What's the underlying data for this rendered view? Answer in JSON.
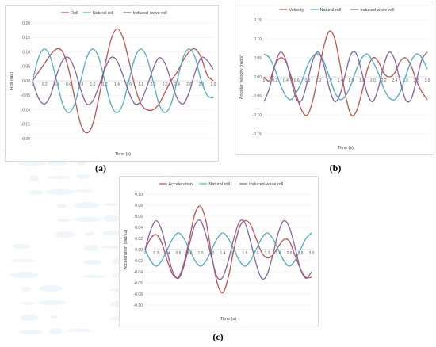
{
  "chart_data": [
    {
      "type": "line",
      "panel_label": "a",
      "xlabel": "Time (s)",
      "ylabel": "Roll (rad)",
      "xlim": [
        0,
        3.0
      ],
      "ylim": [
        -0.2,
        0.2
      ],
      "xticks": [
        "0",
        "0.2",
        "0.4",
        "0.6",
        "0.8",
        "1.0",
        "1.2",
        "1.4",
        "1.6",
        "1.8",
        "2.0",
        "2.2",
        "2.4",
        "2.6",
        "2.8",
        "3.0"
      ],
      "yticks": [
        "0.20",
        "0.15",
        "0.10",
        "0.05",
        "0.00",
        "-0.05",
        "-0.10",
        "-0.15",
        "-0.20"
      ],
      "legend_position": "top",
      "series": [
        {
          "name": "Roll",
          "color": "#c0504d",
          "x": [
            0.0,
            0.1,
            0.2,
            0.3,
            0.4,
            0.5,
            0.6,
            0.7,
            0.8,
            0.9,
            1.0,
            1.1,
            1.2,
            1.3,
            1.4,
            1.5,
            1.6,
            1.7,
            1.8,
            1.9,
            2.0,
            2.1,
            2.2,
            2.3,
            2.4,
            2.5,
            2.6,
            2.7,
            2.8,
            2.9,
            3.0
          ],
          "y": [
            0.0,
            0.03,
            0.06,
            0.09,
            0.11,
            0.1,
            0.04,
            -0.06,
            -0.15,
            -0.18,
            -0.15,
            -0.06,
            0.05,
            0.14,
            0.18,
            0.15,
            0.07,
            -0.02,
            -0.08,
            -0.1,
            -0.1,
            -0.08,
            -0.04,
            0.0,
            0.03,
            0.07,
            0.1,
            0.11,
            0.08,
            0.02,
            0.0
          ]
        },
        {
          "name": "Natural roll",
          "color": "#4bacc6",
          "x": [
            0.0,
            0.1,
            0.2,
            0.3,
            0.4,
            0.5,
            0.6,
            0.7,
            0.8,
            0.9,
            1.0,
            1.1,
            1.2,
            1.3,
            1.4,
            1.5,
            1.6,
            1.7,
            1.8,
            1.9,
            2.0,
            2.1,
            2.2,
            2.3,
            2.4,
            2.5,
            2.6,
            2.7,
            2.8,
            2.9,
            3.0
          ],
          "y": [
            0.0,
            0.08,
            0.11,
            0.08,
            0.0,
            -0.08,
            -0.11,
            -0.08,
            0.0,
            0.08,
            0.11,
            0.08,
            0.0,
            -0.08,
            -0.11,
            -0.08,
            0.0,
            0.08,
            0.11,
            0.08,
            0.0,
            -0.08,
            -0.11,
            -0.08,
            0.0,
            0.08,
            0.11,
            0.08,
            0.0,
            -0.05,
            -0.06
          ]
        },
        {
          "name": "Induced-wave roll",
          "color": "#8064a2",
          "x": [
            0.0,
            0.1,
            0.2,
            0.3,
            0.4,
            0.5,
            0.6,
            0.7,
            0.8,
            0.9,
            1.0,
            1.1,
            1.2,
            1.3,
            1.4,
            1.5,
            1.6,
            1.7,
            1.8,
            1.9,
            2.0,
            2.1,
            2.2,
            2.3,
            2.4,
            2.5,
            2.6,
            2.7,
            2.8,
            2.9,
            3.0
          ],
          "y": [
            0.0,
            -0.06,
            -0.08,
            -0.05,
            0.02,
            0.07,
            0.08,
            0.04,
            -0.03,
            -0.08,
            -0.07,
            -0.02,
            0.04,
            0.08,
            0.07,
            0.02,
            -0.04,
            -0.08,
            -0.07,
            -0.02,
            0.04,
            0.08,
            0.06,
            0.0,
            -0.06,
            -0.08,
            -0.04,
            0.03,
            0.08,
            0.07,
            0.04
          ]
        }
      ]
    },
    {
      "type": "line",
      "panel_label": "b",
      "xlabel": "Time (s)",
      "ylabel": "Angular velocity (rad/s)",
      "xlim": [
        0,
        3.0
      ],
      "ylim": [
        -0.15,
        0.15
      ],
      "xticks": [
        "0",
        "0.2",
        "0.4",
        "0.6",
        "0.8",
        "1.0",
        "1.2",
        "1.4",
        "1.6",
        "1.8",
        "2.0",
        "2.2",
        "2.4",
        "2.6",
        "2.8",
        "3.0"
      ],
      "yticks": [
        "0.15",
        "0.10",
        "0.05",
        "0.00",
        "-0.05",
        "-0.10",
        "-0.15"
      ],
      "legend_position": "top",
      "series": [
        {
          "name": "Velocity",
          "color": "#c0504d",
          "x": [
            0.0,
            0.1,
            0.2,
            0.3,
            0.4,
            0.5,
            0.6,
            0.7,
            0.8,
            0.9,
            1.0,
            1.1,
            1.2,
            1.3,
            1.4,
            1.5,
            1.6,
            1.7,
            1.8,
            1.9,
            2.0,
            2.1,
            2.2,
            2.3,
            2.4,
            2.5,
            2.6,
            2.7,
            2.8,
            2.9,
            3.0
          ],
          "y": [
            0.0,
            -0.01,
            0.03,
            0.05,
            0.04,
            0.0,
            -0.05,
            -0.09,
            -0.1,
            -0.06,
            0.01,
            0.08,
            0.12,
            0.1,
            0.03,
            -0.05,
            -0.1,
            -0.09,
            -0.04,
            0.02,
            0.05,
            0.04,
            0.01,
            0.0,
            0.01,
            0.04,
            0.05,
            0.03,
            -0.01,
            -0.04,
            -0.06
          ]
        },
        {
          "name": "Natural roll",
          "color": "#4bacc6",
          "x": [
            0.0,
            0.1,
            0.2,
            0.3,
            0.4,
            0.5,
            0.6,
            0.7,
            0.8,
            0.9,
            1.0,
            1.1,
            1.2,
            1.3,
            1.4,
            1.5,
            1.6,
            1.7,
            1.8,
            1.9,
            2.0,
            2.1,
            2.2,
            2.3,
            2.4,
            2.5,
            2.6,
            2.7,
            2.8,
            2.9,
            3.0
          ],
          "y": [
            0.06,
            0.05,
            0.02,
            -0.02,
            -0.05,
            -0.06,
            -0.04,
            -0.01,
            0.03,
            0.055,
            0.06,
            0.04,
            0.0,
            -0.04,
            -0.06,
            -0.05,
            -0.02,
            0.02,
            0.05,
            0.06,
            0.04,
            0.01,
            -0.03,
            -0.055,
            -0.06,
            -0.04,
            0.0,
            0.04,
            0.06,
            0.05,
            0.02
          ]
        },
        {
          "name": "Induced-wave roll",
          "color": "#8064a2",
          "x": [
            0.0,
            0.1,
            0.2,
            0.3,
            0.4,
            0.5,
            0.6,
            0.7,
            0.8,
            0.9,
            1.0,
            1.1,
            1.2,
            1.3,
            1.4,
            1.5,
            1.6,
            1.7,
            1.8,
            1.9,
            2.0,
            2.1,
            2.2,
            2.3,
            2.4,
            2.5,
            2.6,
            2.7,
            2.8,
            2.9,
            3.0
          ],
          "y": [
            -0.065,
            -0.03,
            0.03,
            0.065,
            0.045,
            -0.01,
            -0.06,
            -0.06,
            -0.01,
            0.045,
            0.065,
            0.03,
            -0.03,
            -0.065,
            -0.045,
            0.01,
            0.06,
            0.06,
            0.01,
            -0.045,
            -0.065,
            -0.03,
            0.03,
            0.065,
            0.045,
            -0.01,
            -0.06,
            -0.06,
            -0.01,
            0.045,
            0.065
          ]
        }
      ]
    },
    {
      "type": "line",
      "panel_label": "c",
      "xlabel": "Time (s)",
      "ylabel": "Acceleration (rad/s2)",
      "xlim": [
        0,
        3.0
      ],
      "ylim": [
        -0.1,
        0.1
      ],
      "xticks": [
        "0",
        "0.2",
        "0.4",
        "0.6",
        "0.8",
        "1.0",
        "1.2",
        "1.4",
        "1.6",
        "1.8",
        "2.0",
        "2.2",
        "2.4",
        "2.6",
        "2.8",
        "3.0"
      ],
      "yticks": [
        "0.10",
        "0.08",
        "0.06",
        "0.04",
        "0.02",
        "0.00",
        "-0.02",
        "-0.04",
        "-0.06",
        "-0.08",
        "-0.10"
      ],
      "legend_position": "top",
      "series": [
        {
          "name": "Acceleration",
          "color": "#c0504d",
          "x": [
            0.0,
            0.1,
            0.2,
            0.3,
            0.4,
            0.5,
            0.6,
            0.7,
            0.8,
            0.9,
            1.0,
            1.1,
            1.2,
            1.3,
            1.4,
            1.5,
            1.6,
            1.7,
            1.8,
            1.9,
            2.0,
            2.1,
            2.2,
            2.3,
            2.4,
            2.5,
            2.6,
            2.7,
            2.8,
            2.9,
            3.0
          ],
          "y": [
            0.0,
            0.02,
            0.027,
            0.012,
            -0.02,
            -0.045,
            -0.05,
            -0.025,
            0.02,
            0.065,
            0.078,
            0.05,
            -0.01,
            -0.06,
            -0.078,
            -0.05,
            0.0,
            0.04,
            0.052,
            0.045,
            0.02,
            -0.005,
            -0.015,
            -0.01,
            0.005,
            0.018,
            0.015,
            -0.01,
            -0.035,
            -0.05,
            -0.05
          ]
        },
        {
          "name": "Natural roll",
          "color": "#4bacc6",
          "x": [
            0.0,
            0.1,
            0.2,
            0.3,
            0.4,
            0.5,
            0.6,
            0.7,
            0.8,
            0.9,
            1.0,
            1.1,
            1.2,
            1.3,
            1.4,
            1.5,
            1.6,
            1.7,
            1.8,
            1.9,
            2.0,
            2.1,
            2.2,
            2.3,
            2.4,
            2.5,
            2.6,
            2.7,
            2.8,
            2.9,
            3.0
          ],
          "y": [
            0.0,
            -0.02,
            -0.03,
            -0.02,
            0.0,
            0.02,
            0.03,
            0.02,
            0.0,
            -0.02,
            -0.03,
            -0.02,
            0.0,
            0.02,
            0.03,
            0.02,
            0.0,
            -0.02,
            -0.03,
            -0.02,
            0.0,
            0.02,
            0.03,
            0.02,
            0.0,
            -0.02,
            -0.03,
            -0.02,
            0.0,
            0.02,
            0.03
          ]
        },
        {
          "name": "Induced-wave roll",
          "color": "#8064a2",
          "x": [
            0.0,
            0.1,
            0.2,
            0.3,
            0.4,
            0.5,
            0.6,
            0.7,
            0.8,
            0.9,
            1.0,
            1.1,
            1.2,
            1.3,
            1.4,
            1.5,
            1.6,
            1.7,
            1.8,
            1.9,
            2.0,
            2.1,
            2.2,
            2.3,
            2.4,
            2.5,
            2.6,
            2.7,
            2.8,
            2.9,
            3.0
          ],
          "y": [
            0.0,
            0.035,
            0.052,
            0.035,
            -0.005,
            -0.04,
            -0.052,
            -0.03,
            0.01,
            0.045,
            0.052,
            0.025,
            -0.015,
            -0.05,
            -0.05,
            -0.02,
            0.02,
            0.05,
            0.048,
            0.015,
            -0.025,
            -0.052,
            -0.045,
            -0.01,
            0.03,
            0.052,
            0.04,
            0.005,
            -0.035,
            -0.052,
            -0.04
          ]
        }
      ]
    }
  ],
  "captions": {
    "a": "(a)",
    "b": "(b)",
    "c": "(c)"
  }
}
